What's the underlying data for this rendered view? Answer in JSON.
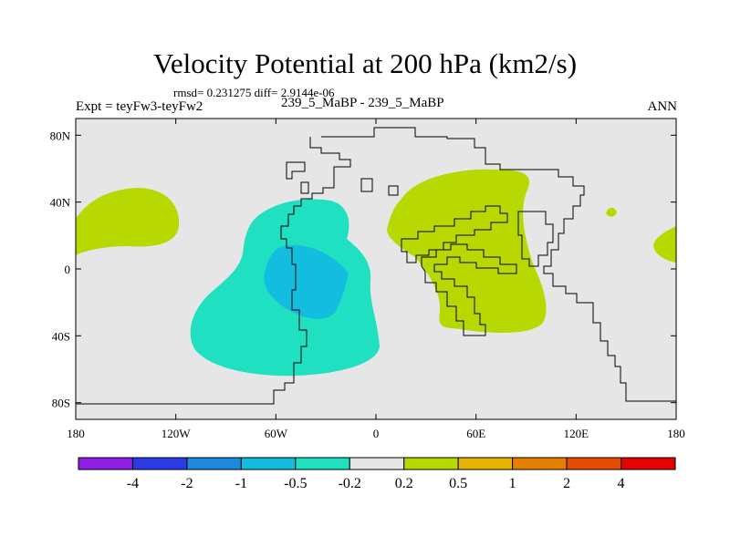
{
  "title": "Velocity Potential at 200 hPa (km2/s)",
  "stats_line": "rmsd= 0.231275 diff= 2.9144e-06",
  "experiment_label": "Expt = teyFw3-teyFw2",
  "case_label": "239_5_MaBP - 239_5_MaBP",
  "season_label": "ANN",
  "colors": {
    "background": "#e6e6e6",
    "green": "#b7d800",
    "teal": "#1fe0c0",
    "cyan": "#13bde0",
    "outline": "#000000"
  },
  "axes": {
    "lon_ticks": [
      {
        "value": -180,
        "label": "180"
      },
      {
        "value": -120,
        "label": "120W"
      },
      {
        "value": -60,
        "label": "60W"
      },
      {
        "value": 0,
        "label": "0"
      },
      {
        "value": 60,
        "label": "60E"
      },
      {
        "value": 120,
        "label": "120E"
      },
      {
        "value": 180,
        "label": "180"
      }
    ],
    "lat_ticks": [
      {
        "value": 80,
        "label": "80N"
      },
      {
        "value": 40,
        "label": "40N"
      },
      {
        "value": 0,
        "label": "0"
      },
      {
        "value": -40,
        "label": "40S"
      },
      {
        "value": -80,
        "label": "80S"
      }
    ],
    "lon_range": [
      -180,
      180
    ],
    "lat_range": [
      -90,
      90
    ]
  },
  "colorbar": {
    "colors": [
      "#8c1ee6",
      "#2a3be6",
      "#1b8ae0",
      "#13bde0",
      "#1fe0c0",
      "#e6e6e6",
      "#b7d800",
      "#e6b400",
      "#e67f00",
      "#e64c00",
      "#e60000"
    ],
    "labels": [
      "-4",
      "-2",
      "-1",
      "-0.5",
      "-0.2",
      "0.2",
      "0.5",
      "1",
      "2",
      "4"
    ]
  }
}
